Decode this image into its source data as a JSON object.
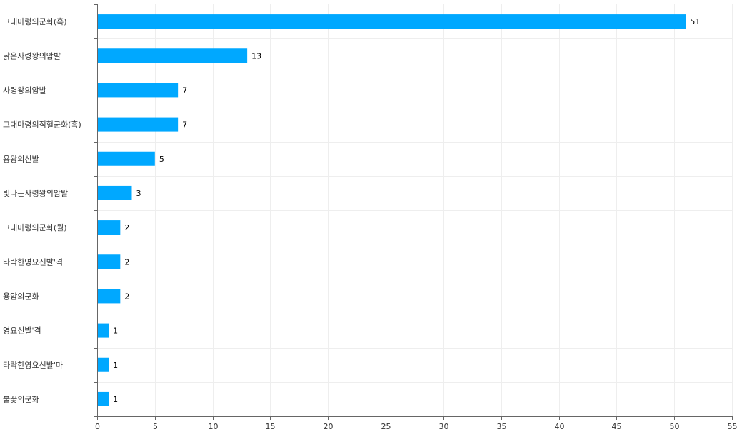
{
  "chart_data": {
    "type": "bar",
    "orientation": "horizontal",
    "title": "",
    "xlabel": "",
    "ylabel": "",
    "categories": [
      "고대마령의군화(흑)",
      "낡은사령왕의암발",
      "사령왕의암발",
      "고대마령의적혈군화(흑)",
      "용왕의신발",
      "빛나는사령왕의암발",
      "고대마령의군화(월)",
      "타락한영요신발'격",
      "용암의군화",
      "영요신발'격",
      "타락한영요신발'마",
      "불꽃의군화"
    ],
    "values": [
      51,
      13,
      7,
      7,
      5,
      3,
      2,
      2,
      2,
      1,
      1,
      1
    ],
    "xlim": [
      0,
      55
    ],
    "x_ticks": [
      0,
      5,
      10,
      15,
      20,
      25,
      30,
      35,
      40,
      45,
      50,
      55
    ],
    "grid": true,
    "legend": "none",
    "bar_color": "#00A8FF",
    "grid_color": "#EEEEEE",
    "axis_color": "#666666"
  }
}
